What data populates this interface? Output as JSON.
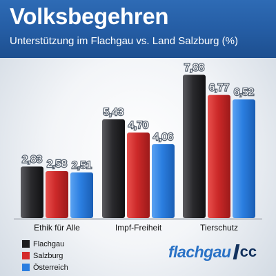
{
  "header": {
    "title": "Volksbegehren",
    "subtitle": "Unterstützung im Flachgau vs. Land Salzburg (%)"
  },
  "colors": {
    "header_blue": "#2563aa",
    "flachgau": "#3a3a3e",
    "salzburg": "#d42a2a",
    "oesterreich": "#2b7ee0"
  },
  "chart_data": {
    "type": "bar",
    "title": "Volksbegehren",
    "subtitle": "Unterstützung im Flachgau vs. Land Salzburg (%)",
    "categories": [
      "Ethik für Alle",
      "Impf-Freiheit",
      "Tierschutz"
    ],
    "series": [
      {
        "name": "Flachgau",
        "values": [
          2.83,
          5.43,
          7.88
        ],
        "labels": [
          "2,83",
          "5,43",
          "7,88"
        ],
        "color": "#3a3a3e"
      },
      {
        "name": "Salzburg",
        "values": [
          2.58,
          4.7,
          6.77
        ],
        "labels": [
          "2,58",
          "4,70",
          "6,77"
        ],
        "color": "#d42a2a"
      },
      {
        "name": "Österreich",
        "values": [
          2.51,
          4.06,
          6.52
        ],
        "labels": [
          "2,51",
          "4,06",
          "6,52"
        ],
        "color": "#2b7ee0"
      }
    ],
    "ylim": [
      0,
      8.5
    ],
    "grid": false,
    "legend_position": "bottom-left"
  },
  "logo": {
    "word": "flachgau",
    "suffix": "cc"
  }
}
